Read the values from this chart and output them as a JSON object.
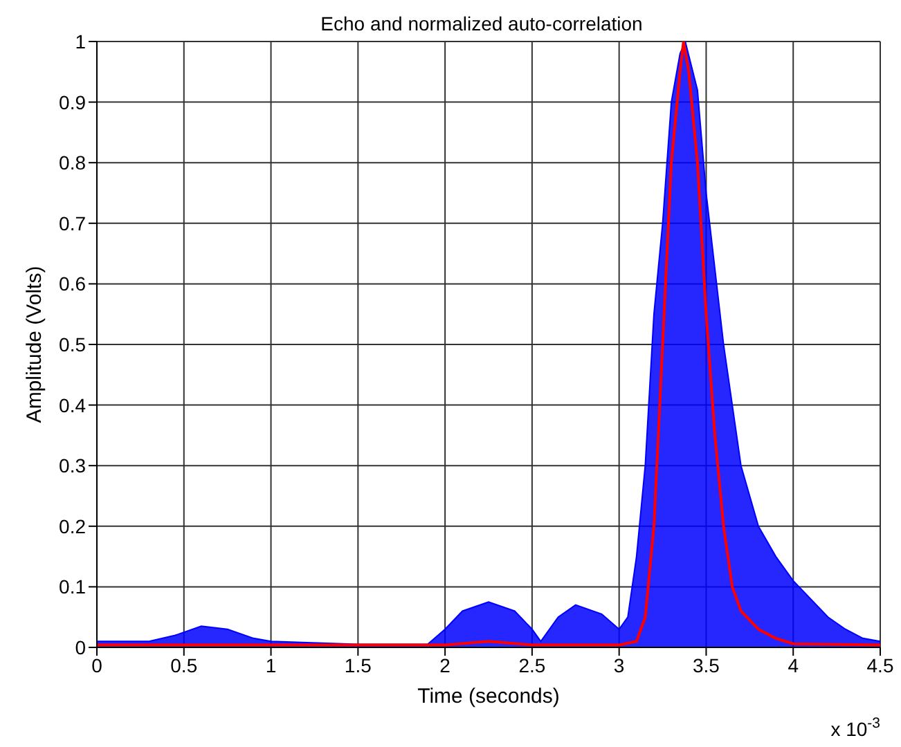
{
  "chart_data": {
    "type": "line",
    "title": "Echo and normalized auto-correlation",
    "xlabel": "Time (seconds)",
    "ylabel": "Amplitude (Volts)",
    "annotations": [
      "x 10$^{-3}$"
    ],
    "xlim": [
      0,
      4.5
    ],
    "xticks": [
      0,
      0.5,
      1,
      1.5,
      2,
      2.5,
      3,
      3.5,
      4,
      4.5
    ],
    "ylim": [
      0,
      1
    ],
    "yticks": [
      0,
      0.1,
      0.2,
      0.3,
      0.4,
      0.5,
      0.6,
      0.7,
      0.8,
      0.9,
      1
    ],
    "grid": true,
    "legend": false,
    "series": [
      {
        "type": "area",
        "color": "#0000ff",
        "x": [
          0,
          0.3,
          0.45,
          0.6,
          0.75,
          0.9,
          1.0,
          1.5,
          1.9,
          2.0,
          2.1,
          2.25,
          2.4,
          2.5,
          2.55,
          2.65,
          2.75,
          2.9,
          3.0,
          3.05,
          3.1,
          3.15,
          3.2,
          3.25,
          3.3,
          3.35,
          3.38,
          3.45,
          3.5,
          3.6,
          3.7,
          3.8,
          3.9,
          4.0,
          4.1,
          4.2,
          4.3,
          4.4,
          4.5
        ],
        "values": [
          0.01,
          0.01,
          0.02,
          0.035,
          0.03,
          0.015,
          0.01,
          0.005,
          0.005,
          0.03,
          0.06,
          0.075,
          0.06,
          0.03,
          0.01,
          0.05,
          0.07,
          0.055,
          0.03,
          0.05,
          0.15,
          0.3,
          0.55,
          0.7,
          0.9,
          0.98,
          1.0,
          0.92,
          0.75,
          0.5,
          0.3,
          0.2,
          0.15,
          0.11,
          0.08,
          0.05,
          0.03,
          0.015,
          0.01
        ]
      },
      {
        "color": "#ff0000",
        "x": [
          0,
          2.0,
          2.25,
          2.5,
          3.0,
          3.1,
          3.15,
          3.2,
          3.25,
          3.3,
          3.35,
          3.37,
          3.4,
          3.45,
          3.5,
          3.55,
          3.6,
          3.65,
          3.7,
          3.8,
          3.9,
          4.0,
          4.5
        ],
        "values": [
          0.004,
          0.004,
          0.01,
          0.004,
          0.004,
          0.01,
          0.05,
          0.2,
          0.5,
          0.8,
          0.95,
          1.0,
          0.95,
          0.8,
          0.55,
          0.35,
          0.2,
          0.1,
          0.06,
          0.03,
          0.015,
          0.006,
          0.004
        ]
      }
    ]
  }
}
